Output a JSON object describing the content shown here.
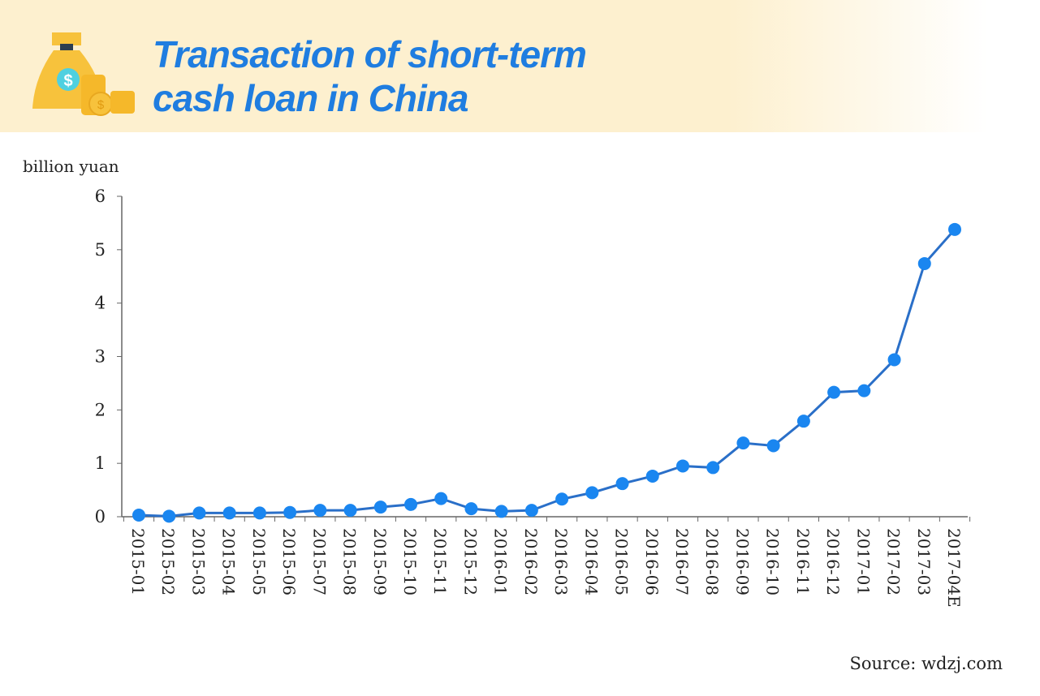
{
  "header": {
    "title_line1": "Transaction of short-term",
    "title_line2": "cash loan in China",
    "icon": "money-bag-coins-icon"
  },
  "source": "Source: wdzj.com",
  "colors": {
    "title": "#1f7de0",
    "series": "#1a86f0",
    "line": "#2a6fc8",
    "banner": "#fdf0cf"
  },
  "chart_data": {
    "type": "line",
    "title": "Transaction of short-term cash loan in China",
    "ylabel": "billion yuan",
    "xlabel": "",
    "ylim": [
      0,
      6
    ],
    "yticks": [
      "0",
      "1",
      "2",
      "3",
      "4",
      "5",
      "6"
    ],
    "grid": false,
    "categories": [
      "2015-01",
      "2015-02",
      "2015-03",
      "2015-04",
      "2015-05",
      "2015-06",
      "2015-07",
      "2015-08",
      "2015-09",
      "2015-10",
      "2015-11",
      "2015-12",
      "2016-01",
      "2016-02",
      "2016-03",
      "2016-04",
      "2016-05",
      "2016-06",
      "2016-07",
      "2016-08",
      "2016-09",
      "2016-10",
      "2016-11",
      "2016-12",
      "2017-01",
      "2017-02",
      "2017-03",
      "2017-04E"
    ],
    "values": [
      0.03,
      0.01,
      0.07,
      0.07,
      0.07,
      0.08,
      0.12,
      0.12,
      0.18,
      0.23,
      0.34,
      0.15,
      0.1,
      0.12,
      0.33,
      0.45,
      0.62,
      0.76,
      0.95,
      0.92,
      1.38,
      1.33,
      1.79,
      2.33,
      2.36,
      2.94,
      4.74,
      5.38
    ]
  }
}
